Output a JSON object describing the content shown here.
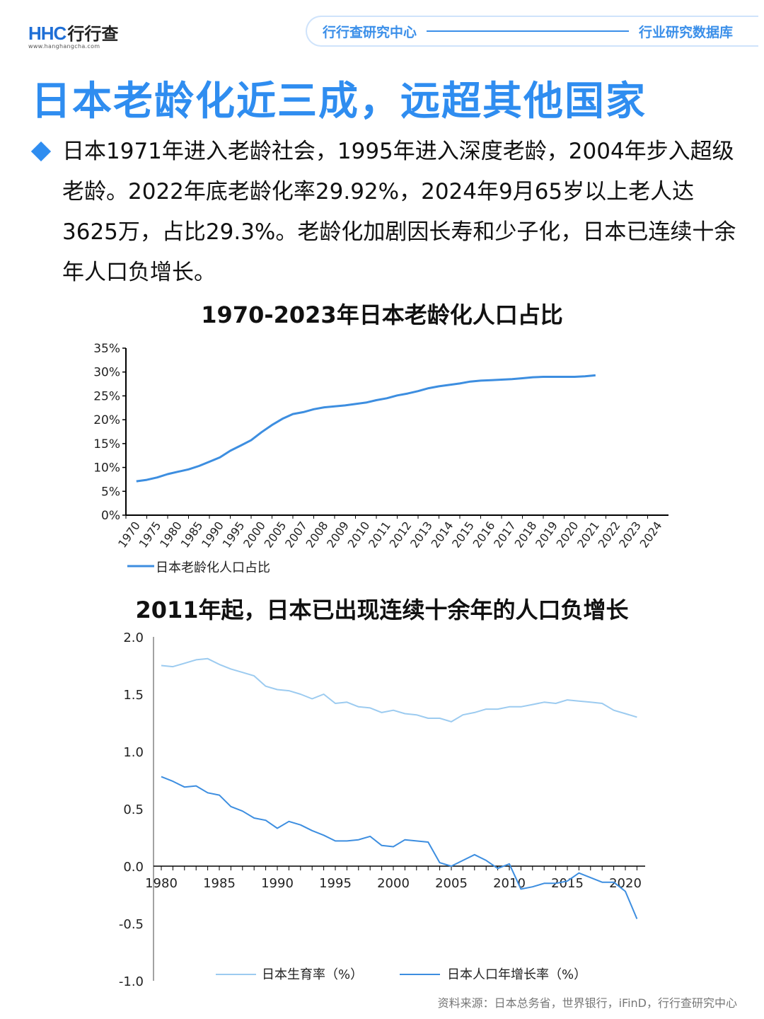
{
  "header": {
    "logo_mark": "HHC",
    "logo_cn": "行行查",
    "logo_url": "www.hanghangcha.com",
    "left_label": "行行查研究中心",
    "right_label": "行业研究数据库"
  },
  "title": "日本老龄化近三成，远超其他国家",
  "bullet": "日本1971年进入老龄社会，1995年进入深度老龄，2004年步入超级老龄。2022年底老龄化率29.92%，2024年9月65岁以上老人达3625万，占比29.3%。老龄化加剧因长寿和少子化，日本已连续十余年人口负增长。",
  "source": "资料来源：日本总务省，世界银行，iFinD，行行查研究中心",
  "colors": {
    "accent": "#2f8df0",
    "line_dark": "#3d8ee0",
    "line_light": "#9ccbf0"
  },
  "chart_data": [
    {
      "type": "line",
      "title": "1970-2023年日本老龄化人口占比",
      "categories": [
        "1970",
        "1975",
        "1980",
        "1985",
        "1990",
        "1995",
        "2000",
        "2005",
        "2007",
        "2008",
        "2009",
        "2010",
        "2011",
        "2012",
        "2013",
        "2014",
        "2015",
        "2016",
        "2017",
        "2018",
        "2019",
        "2020",
        "2021",
        "2022",
        "2023",
        "2024"
      ],
      "y_ticks": [
        "0%",
        "5%",
        "10%",
        "15%",
        "20%",
        "25%",
        "30%",
        "35%"
      ],
      "ylim": [
        0,
        35
      ],
      "series": [
        {
          "name": "日本老龄化人口占比",
          "color": "#3d8ee0",
          "points": [
            [
              0,
              7.1
            ],
            [
              0.5,
              7.4
            ],
            [
              1,
              7.9
            ],
            [
              1.5,
              8.6
            ],
            [
              2,
              9.1
            ],
            [
              2.5,
              9.6
            ],
            [
              3,
              10.3
            ],
            [
              3.5,
              11.2
            ],
            [
              4,
              12.1
            ],
            [
              4.5,
              13.5
            ],
            [
              5,
              14.6
            ],
            [
              5.5,
              15.7
            ],
            [
              6,
              17.4
            ],
            [
              6.5,
              18.9
            ],
            [
              7,
              20.2
            ],
            [
              7.5,
              21.2
            ],
            [
              8,
              21.6
            ],
            [
              8.5,
              22.2
            ],
            [
              9,
              22.6
            ],
            [
              9.5,
              22.8
            ],
            [
              10,
              23.0
            ],
            [
              10.5,
              23.3
            ],
            [
              11,
              23.6
            ],
            [
              11.5,
              24.1
            ],
            [
              12,
              24.5
            ],
            [
              12.5,
              25.1
            ],
            [
              13,
              25.5
            ],
            [
              13.5,
              26.0
            ],
            [
              14,
              26.6
            ],
            [
              14.5,
              27.0
            ],
            [
              15,
              27.3
            ],
            [
              15.5,
              27.6
            ],
            [
              16,
              28.0
            ],
            [
              16.5,
              28.2
            ],
            [
              17,
              28.3
            ],
            [
              17.5,
              28.4
            ],
            [
              18,
              28.5
            ],
            [
              18.5,
              28.7
            ],
            [
              19,
              28.9
            ],
            [
              19.5,
              29.0
            ],
            [
              20,
              29.0
            ],
            [
              20.5,
              29.0
            ],
            [
              21,
              29.0
            ],
            [
              21.5,
              29.1
            ],
            [
              22,
              29.3
            ]
          ]
        }
      ]
    },
    {
      "type": "line",
      "title": "2011年起，日本已出现连续十余年的人口负增长",
      "x_ticks": [
        "1980",
        "1985",
        "1990",
        "1995",
        "2000",
        "2005",
        "2010",
        "2015",
        "2020"
      ],
      "y_ticks": [
        "2.0",
        "1.5",
        "1.0",
        "0.5",
        "0.0",
        "-0.5",
        "-1.0"
      ],
      "ylim": [
        -1.0,
        2.0
      ],
      "xlim": [
        1980,
        2022
      ],
      "series": [
        {
          "name": "日本生育率（%）",
          "color": "#9ccbf0",
          "points": [
            [
              1980,
              1.75
            ],
            [
              1981,
              1.74
            ],
            [
              1982,
              1.77
            ],
            [
              1983,
              1.8
            ],
            [
              1984,
              1.81
            ],
            [
              1985,
              1.76
            ],
            [
              1986,
              1.72
            ],
            [
              1987,
              1.69
            ],
            [
              1988,
              1.66
            ],
            [
              1989,
              1.57
            ],
            [
              1990,
              1.54
            ],
            [
              1991,
              1.53
            ],
            [
              1992,
              1.5
            ],
            [
              1993,
              1.46
            ],
            [
              1994,
              1.5
            ],
            [
              1995,
              1.42
            ],
            [
              1996,
              1.43
            ],
            [
              1997,
              1.39
            ],
            [
              1998,
              1.38
            ],
            [
              1999,
              1.34
            ],
            [
              2000,
              1.36
            ],
            [
              2001,
              1.33
            ],
            [
              2002,
              1.32
            ],
            [
              2003,
              1.29
            ],
            [
              2004,
              1.29
            ],
            [
              2005,
              1.26
            ],
            [
              2006,
              1.32
            ],
            [
              2007,
              1.34
            ],
            [
              2008,
              1.37
            ],
            [
              2009,
              1.37
            ],
            [
              2010,
              1.39
            ],
            [
              2011,
              1.39
            ],
            [
              2012,
              1.41
            ],
            [
              2013,
              1.43
            ],
            [
              2014,
              1.42
            ],
            [
              2015,
              1.45
            ],
            [
              2016,
              1.44
            ],
            [
              2017,
              1.43
            ],
            [
              2018,
              1.42
            ],
            [
              2019,
              1.36
            ],
            [
              2020,
              1.33
            ],
            [
              2021,
              1.3
            ]
          ]
        },
        {
          "name": "日本人口年增长率（%）",
          "color": "#3d8ee0",
          "points": [
            [
              1980,
              0.78
            ],
            [
              1981,
              0.74
            ],
            [
              1982,
              0.69
            ],
            [
              1983,
              0.7
            ],
            [
              1984,
              0.64
            ],
            [
              1985,
              0.62
            ],
            [
              1986,
              0.52
            ],
            [
              1987,
              0.48
            ],
            [
              1988,
              0.42
            ],
            [
              1989,
              0.4
            ],
            [
              1990,
              0.33
            ],
            [
              1991,
              0.39
            ],
            [
              1992,
              0.36
            ],
            [
              1993,
              0.31
            ],
            [
              1994,
              0.27
            ],
            [
              1995,
              0.22
            ],
            [
              1996,
              0.22
            ],
            [
              1997,
              0.23
            ],
            [
              1998,
              0.26
            ],
            [
              1999,
              0.18
            ],
            [
              2000,
              0.17
            ],
            [
              2001,
              0.23
            ],
            [
              2002,
              0.22
            ],
            [
              2003,
              0.21
            ],
            [
              2004,
              0.03
            ],
            [
              2005,
              0.0
            ],
            [
              2006,
              0.05
            ],
            [
              2007,
              0.1
            ],
            [
              2008,
              0.05
            ],
            [
              2009,
              -0.02
            ],
            [
              2010,
              0.02
            ],
            [
              2011,
              -0.2
            ],
            [
              2012,
              -0.18
            ],
            [
              2013,
              -0.15
            ],
            [
              2014,
              -0.15
            ],
            [
              2015,
              -0.13
            ],
            [
              2016,
              -0.06
            ],
            [
              2017,
              -0.1
            ],
            [
              2018,
              -0.14
            ],
            [
              2019,
              -0.14
            ],
            [
              2020,
              -0.22
            ],
            [
              2021,
              -0.46
            ]
          ]
        }
      ]
    }
  ]
}
